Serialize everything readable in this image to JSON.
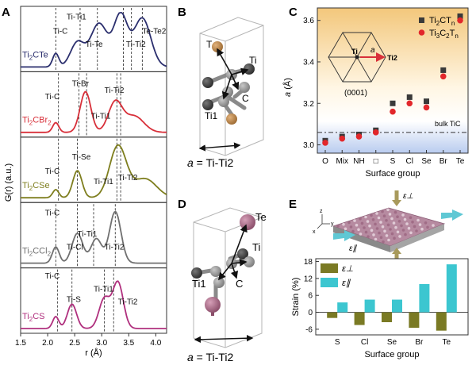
{
  "panels": {
    "A": {
      "letter": "A"
    },
    "B": {
      "letter": "B"
    },
    "C": {
      "letter": "C"
    },
    "D": {
      "letter": "D"
    },
    "E": {
      "letter": "E"
    }
  },
  "panelA": {
    "ylabel": "G(r) (a.u.)",
    "xlabel": "r (Å)",
    "xticks": [
      "1.5",
      "2.0",
      "2.5",
      "3.0",
      "3.5",
      "4.0"
    ],
    "xlim": [
      1.5,
      4.2
    ],
    "rows": [
      {
        "compound": "Ti2CTe",
        "color": "#2b2f6e",
        "labels": [
          "Ti-Ti1",
          "Ti-C",
          "Ti-Te",
          "Ti-Ti2",
          "Te-Te2"
        ]
      },
      {
        "compound": "Ti2CBr2",
        "color": "#d8303a",
        "labels": [
          "Ti-Br",
          "Ti-Ti2",
          "Ti-C",
          "Ti-Ti1"
        ]
      },
      {
        "compound": "Ti2CSe",
        "color": "#7e7e1e",
        "labels": [
          "Ti-Se",
          "Ti-Ti2",
          "Ti-C",
          "Ti-Ti1"
        ]
      },
      {
        "compound": "Ti2CCl2",
        "color": "#707070",
        "labels": [
          "Ti-C",
          "Ti-Ti1",
          "Ti-Cl",
          "Ti-Ti2"
        ]
      },
      {
        "compound": "Ti2CS",
        "color": "#b0307e",
        "labels": [
          "Ti-C",
          "Ti-Ti1",
          "Ti-S",
          "Ti-Ti2"
        ]
      }
    ]
  },
  "panelB": {
    "atoms": {
      "T": "T",
      "Ti": "Ti",
      "C": "C",
      "Ti1": "Ti1"
    },
    "caption_a": "a",
    "caption_rest": " = Ti-Ti2"
  },
  "panelD": {
    "atoms": {
      "Te": "Te",
      "Ti": "Ti",
      "C": "C",
      "Ti1": "Ti1"
    },
    "caption_a": "a",
    "caption_rest": " = Ti-Ti2"
  },
  "panelC": {
    "ylabel_a": "a",
    "ylabel_unit": " (Å)",
    "xlabel": "Surface group",
    "inset": {
      "ti": "Ti",
      "ti2": "Ti2",
      "a": "a",
      "plane": "(0001)"
    },
    "bulk_label": "bulk TiC",
    "legend": [
      {
        "base": "Ti",
        "sub1": "2",
        "mid": "CT",
        "sub2": "n",
        "color": "#3a3a3a"
      },
      {
        "base": "Ti",
        "sub1": "3",
        "mid": "C",
        "sub1b": "2",
        "mid2": "T",
        "sub2": "n",
        "color": "#e2272b"
      }
    ]
  },
  "chart_data": [
    {
      "type": "scatter",
      "panel": "C",
      "categories": [
        "O",
        "Mix",
        "NH",
        "□",
        "S",
        "Cl",
        "Se",
        "Br",
        "Te"
      ],
      "series": [
        {
          "name": "Ti2CTn",
          "values": [
            3.02,
            3.04,
            3.05,
            3.07,
            3.2,
            3.23,
            3.21,
            3.36,
            3.62
          ]
        },
        {
          "name": "Ti3C2Tn",
          "values": [
            3.01,
            3.03,
            3.04,
            3.06,
            3.16,
            3.2,
            3.18,
            3.33,
            3.6
          ]
        }
      ],
      "yticks": [
        "3.0",
        "3.2",
        "3.4",
        "3.6"
      ],
      "ylim": [
        2.96,
        3.66
      ],
      "bulk_TiC": 3.06,
      "ylabel": "a (Å)",
      "xlabel": "Surface group",
      "legend_placement": "top-right"
    },
    {
      "type": "bar",
      "panel": "E",
      "categories": [
        "S",
        "Cl",
        "Se",
        "Br",
        "Te"
      ],
      "series": [
        {
          "name": "ε⊥",
          "color": "#7a7a24",
          "values": [
            -2,
            -4.5,
            -3.5,
            -5.5,
            -6.5
          ]
        },
        {
          "name": "ε∥",
          "color": "#3cc6d0",
          "values": [
            3.5,
            4.5,
            4.5,
            10,
            17
          ]
        }
      ],
      "yticks": [
        "-6",
        "0",
        "6",
        "12",
        "18"
      ],
      "ylim": [
        -8,
        19
      ],
      "ylabel": "Strain (%)",
      "xlabel": "Surface group",
      "legend_placement": "top-left"
    }
  ],
  "panelE_inset": {
    "axis_z": "z",
    "axis_y": "y",
    "axis_x": "x",
    "eps_perp": "ε⊥",
    "eps_par": "ε∥"
  }
}
